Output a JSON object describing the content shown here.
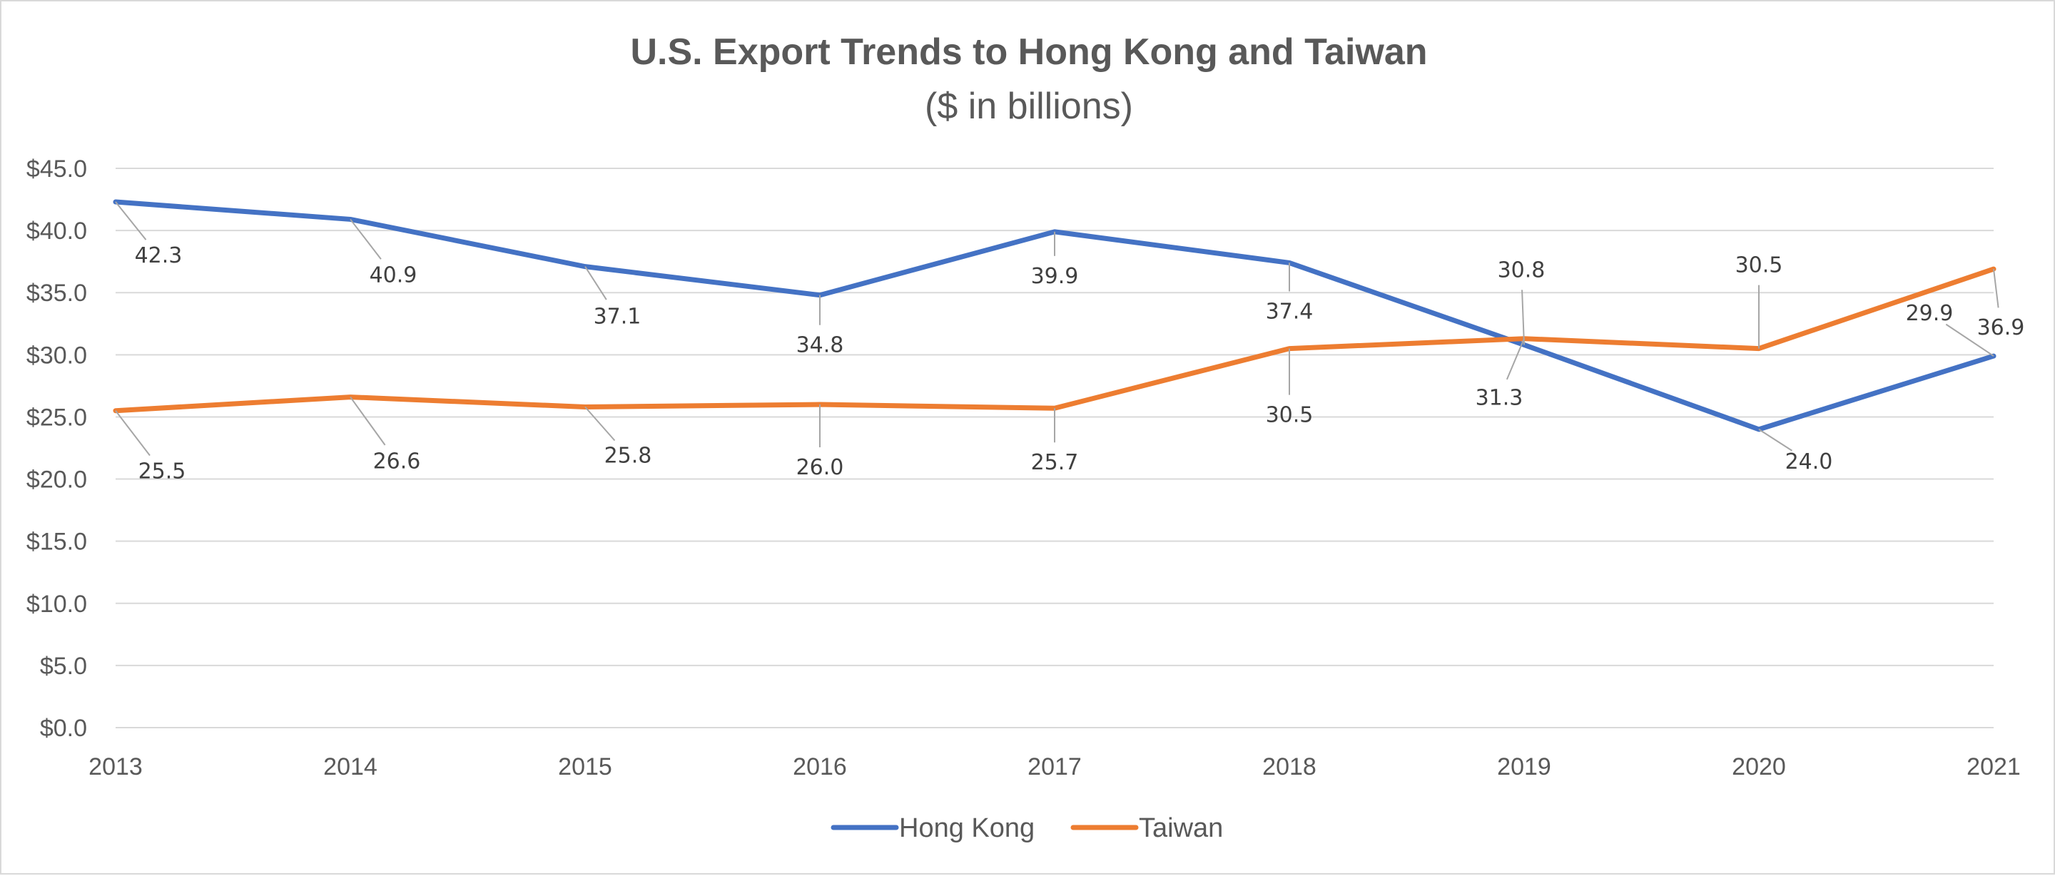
{
  "chart_data": {
    "type": "line",
    "title": "U.S. Export Trends to Hong Kong and Taiwan",
    "subtitle": "($ in billions)",
    "categories": [
      "2013",
      "2014",
      "2015",
      "2016",
      "2017",
      "2018",
      "2019",
      "2020",
      "2021"
    ],
    "series": [
      {
        "name": "Hong Kong",
        "color": "#4472c4",
        "values": [
          42.3,
          40.9,
          37.1,
          34.8,
          39.9,
          37.4,
          30.8,
          24.0,
          29.9
        ]
      },
      {
        "name": "Taiwan",
        "color": "#ed7d31",
        "values": [
          25.5,
          26.6,
          25.8,
          26.0,
          25.7,
          30.5,
          31.3,
          30.5,
          36.9
        ]
      }
    ],
    "y_tick_labels": [
      "$0.0",
      "$5.0",
      "$10.0",
      "$15.0",
      "$20.0",
      "$25.0",
      "$30.0",
      "$35.0",
      "$40.0",
      "$45.0"
    ],
    "ylim": [
      0,
      45
    ],
    "y_step": 5,
    "grid": true,
    "legend": "bottom",
    "data_labels": true,
    "gridline_color": "#d9d9d9",
    "leader_line_color": "#a6a6a6"
  }
}
